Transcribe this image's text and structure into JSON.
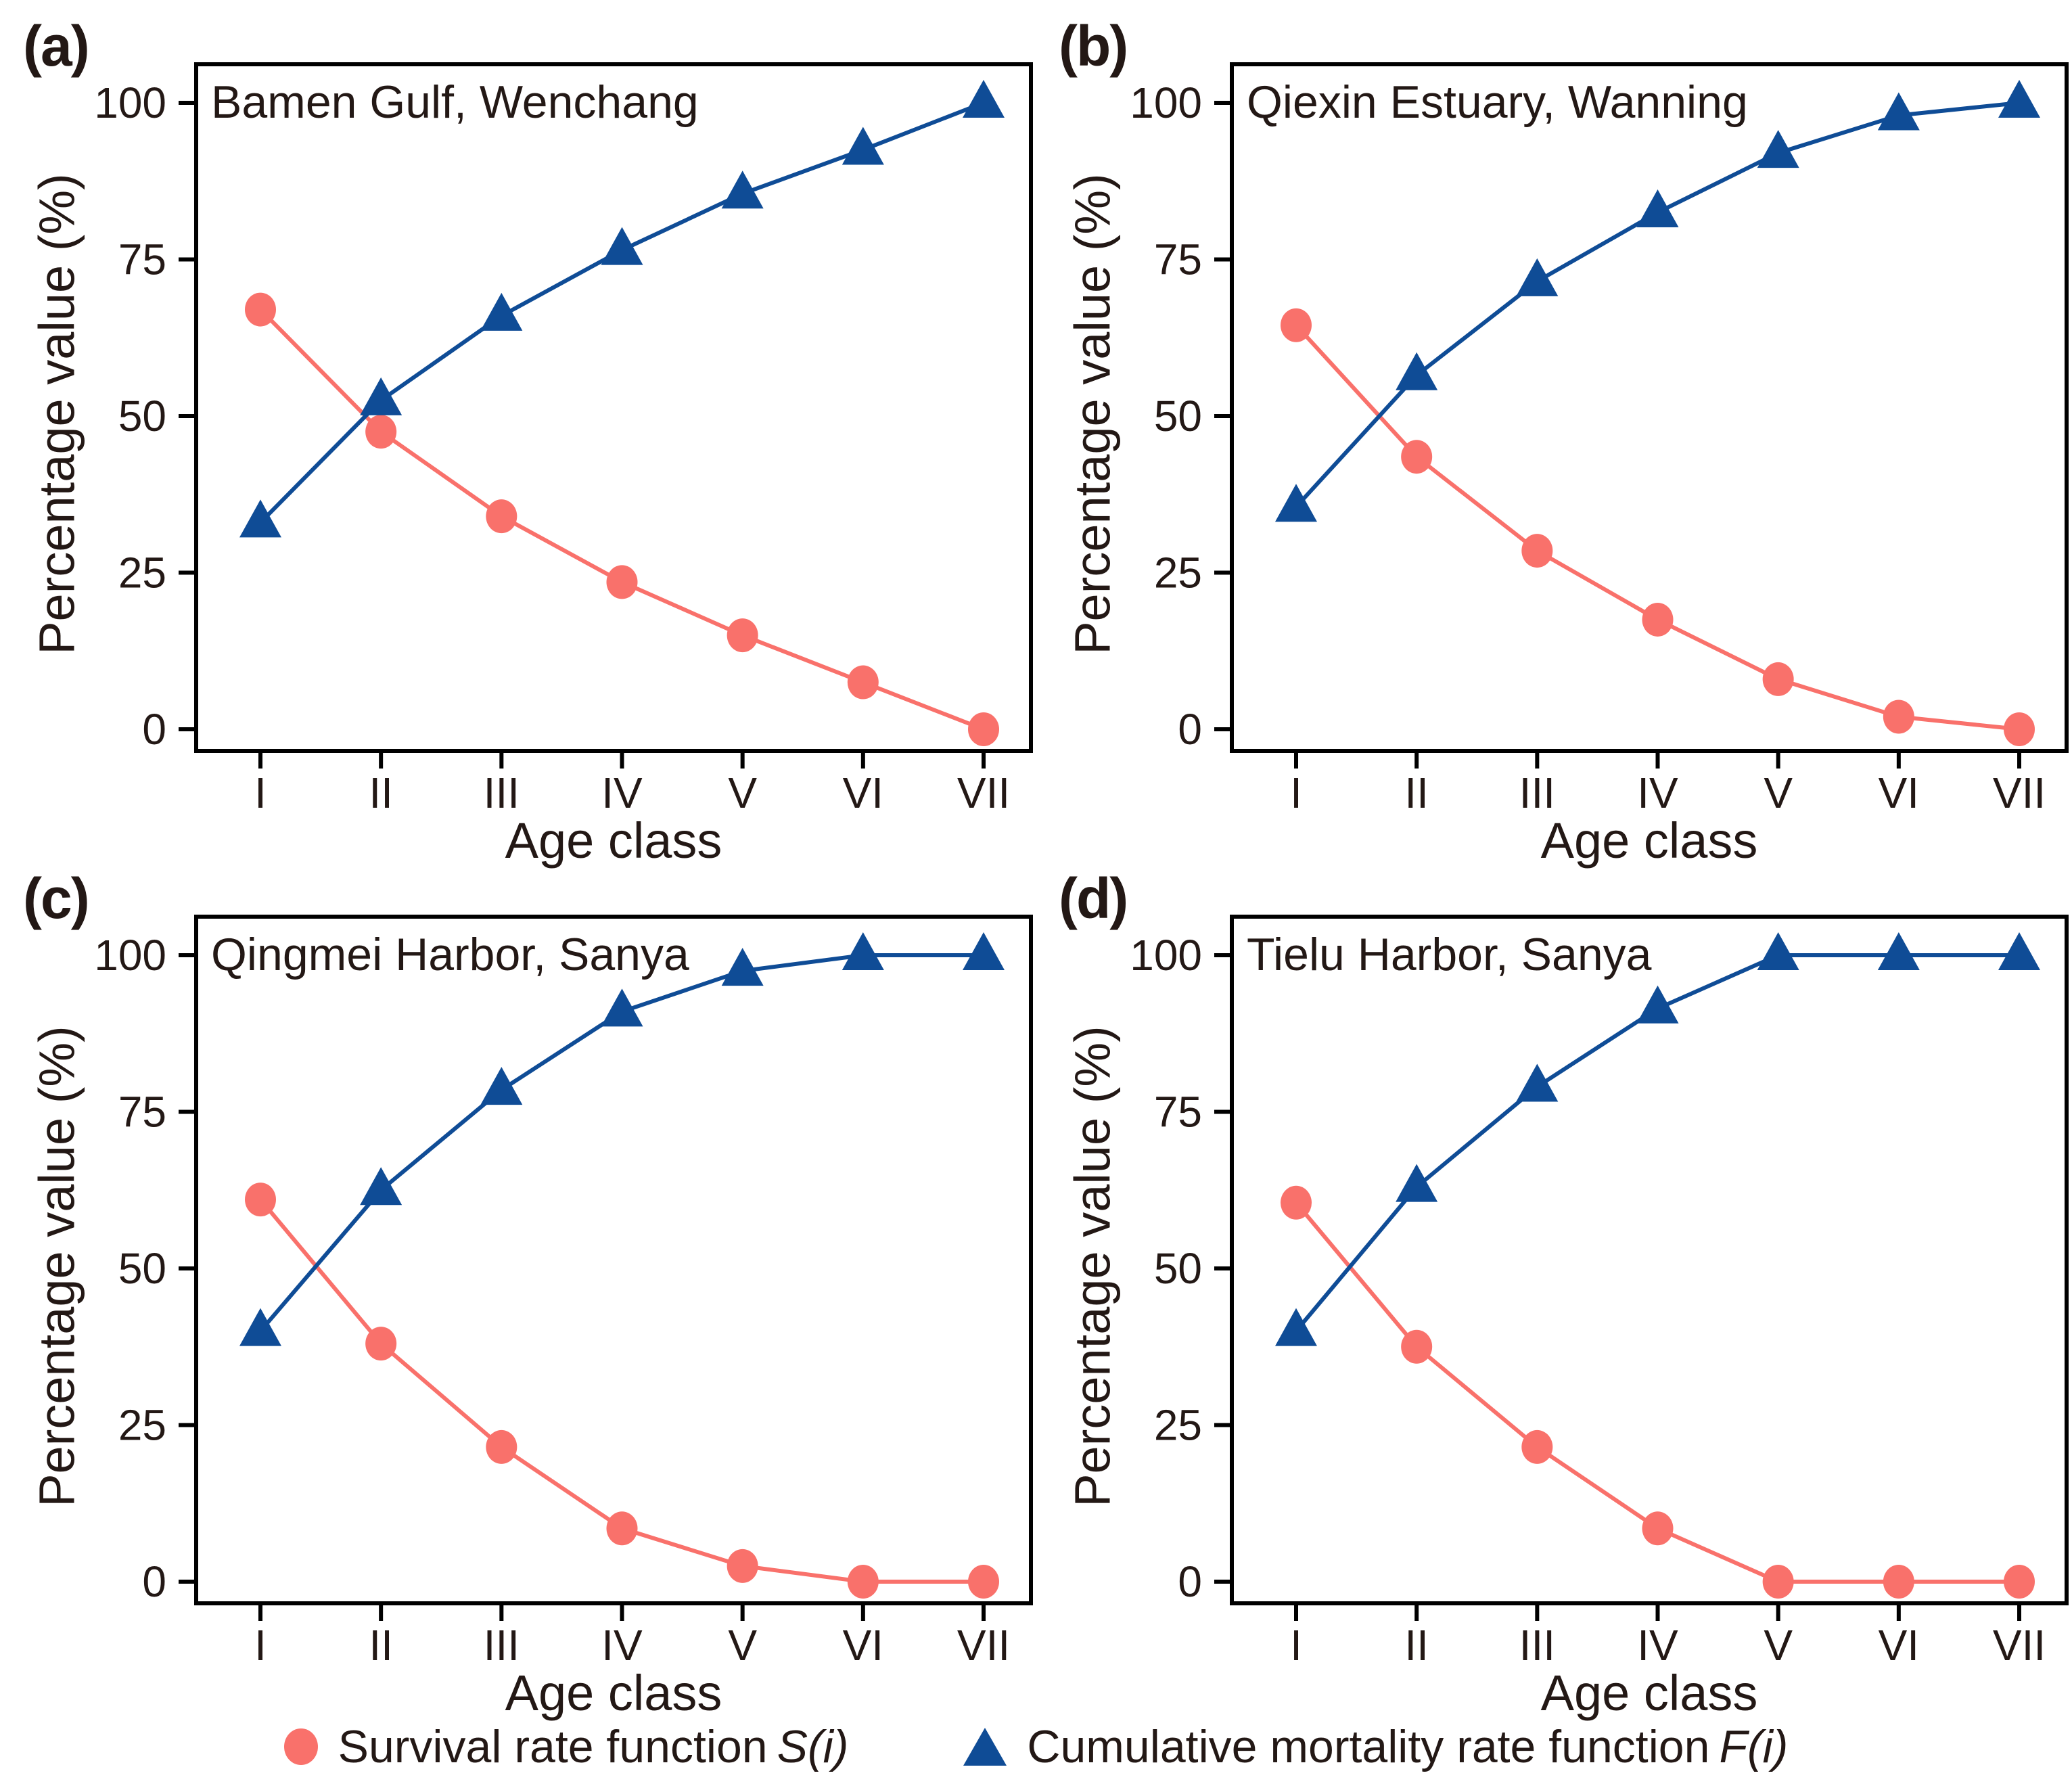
{
  "figure": {
    "y_axis_label": "Percentage value (%)",
    "x_axis_label": "Age class",
    "colors": {
      "survival_red": "#F9716B",
      "mortality_blue": "#0F4C96",
      "text": "#231815",
      "axis": "#000000"
    },
    "legend": [
      {
        "marker": "circle",
        "label": "Survival rate function",
        "symbol": "S(i)"
      },
      {
        "marker": "triangle",
        "label": "Cumulative mortality rate function",
        "symbol": "F(i)"
      }
    ]
  },
  "chart_data": [
    {
      "type": "line",
      "panel": "(a)",
      "title": "Bamen Gulf, Wenchang",
      "categories": [
        "I",
        "II",
        "III",
        "IV",
        "V",
        "VI",
        "VII"
      ],
      "xlabel": "Age class",
      "ylabel": "Percentage value (%)",
      "ylim": [
        0,
        100
      ],
      "y_ticks": [
        0,
        25,
        50,
        75,
        100
      ],
      "grid": false,
      "series": [
        {
          "name": "Survival rate function S(i)",
          "marker": "circle",
          "color": "#F9716B",
          "values": [
            67,
            47.5,
            34,
            23.5,
            15,
            7.5,
            0
          ]
        },
        {
          "name": "Cumulative mortality rate function F(i)",
          "marker": "triangle",
          "color": "#0F4C96",
          "values": [
            33,
            52.5,
            66,
            76.5,
            85.5,
            92.5,
            100
          ]
        }
      ]
    },
    {
      "type": "line",
      "panel": "(b)",
      "title": "Qiexin Estuary, Wanning",
      "categories": [
        "I",
        "II",
        "III",
        "IV",
        "V",
        "VI",
        "VII"
      ],
      "xlabel": "Age class",
      "ylabel": "Percentage value (%)",
      "ylim": [
        0,
        100
      ],
      "y_ticks": [
        0,
        25,
        50,
        75,
        100
      ],
      "grid": false,
      "series": [
        {
          "name": "Survival rate function S(i)",
          "marker": "circle",
          "color": "#F9716B",
          "values": [
            64.5,
            43.5,
            28.5,
            17.5,
            8,
            2,
            0
          ]
        },
        {
          "name": "Cumulative mortality rate function F(i)",
          "marker": "triangle",
          "color": "#0F4C96",
          "values": [
            35.5,
            56.5,
            71.5,
            82.5,
            92,
            98,
            100
          ]
        }
      ]
    },
    {
      "type": "line",
      "panel": "(c)",
      "title": "Qingmei Harbor, Sanya",
      "categories": [
        "I",
        "II",
        "III",
        "IV",
        "V",
        "VI",
        "VII"
      ],
      "xlabel": "Age class",
      "ylabel": "Percentage value (%)",
      "ylim": [
        0,
        100
      ],
      "y_ticks": [
        0,
        25,
        50,
        75,
        100
      ],
      "grid": false,
      "series": [
        {
          "name": "Survival rate function S(i)",
          "marker": "circle",
          "color": "#F9716B",
          "values": [
            61,
            38,
            21.5,
            8.5,
            2.5,
            0,
            0
          ]
        },
        {
          "name": "Cumulative mortality rate function F(i)",
          "marker": "triangle",
          "color": "#0F4C96",
          "values": [
            40,
            62.5,
            78.5,
            91,
            97.5,
            100,
            100
          ]
        }
      ]
    },
    {
      "type": "line",
      "panel": "(d)",
      "title": "Tielu Harbor, Sanya",
      "categories": [
        "I",
        "II",
        "III",
        "IV",
        "V",
        "VI",
        "VII"
      ],
      "xlabel": "Age class",
      "ylabel": "Percentage value (%)",
      "ylim": [
        0,
        100
      ],
      "y_ticks": [
        0,
        25,
        50,
        75,
        100
      ],
      "grid": false,
      "series": [
        {
          "name": "Survival rate function S(i)",
          "marker": "circle",
          "color": "#F9716B",
          "values": [
            60.5,
            37.5,
            21.5,
            8.5,
            0,
            0,
            0
          ]
        },
        {
          "name": "Cumulative mortality rate function F(i)",
          "marker": "triangle",
          "color": "#0F4C96",
          "values": [
            40,
            63,
            79,
            91.5,
            100,
            100,
            100
          ]
        }
      ]
    }
  ]
}
